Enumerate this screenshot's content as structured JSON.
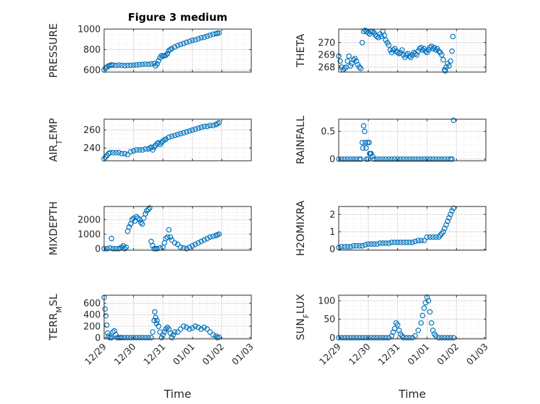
{
  "figure": {
    "title": "Figure 3 medium"
  },
  "chart_data": [
    {
      "type": "scatter",
      "title": "Figure 3 medium",
      "xlabel": "",
      "ylabel": "PRESSURE",
      "xlim": [
        0,
        5
      ],
      "ylim": [
        580,
        1000
      ],
      "yticks": [
        600,
        800,
        1000
      ],
      "ytick_labels": [
        "600",
        "800",
        "1000"
      ],
      "xtick_labels": [
        "12/29",
        "12/30",
        "12/31",
        "01/01",
        "01/02",
        "01/03"
      ],
      "grid": true,
      "x": [
        0.0,
        0.05,
        0.1,
        0.15,
        0.2,
        0.25,
        0.3,
        0.4,
        0.5,
        0.6,
        0.7,
        0.8,
        0.9,
        1.0,
        1.1,
        1.2,
        1.3,
        1.4,
        1.5,
        1.6,
        1.7,
        1.75,
        1.8,
        1.85,
        1.9,
        1.95,
        2.0,
        2.05,
        2.1,
        2.15,
        2.2,
        2.25,
        2.3,
        2.4,
        2.5,
        2.6,
        2.7,
        2.8,
        2.9,
        3.0,
        3.1,
        3.2,
        3.3,
        3.4,
        3.5,
        3.6,
        3.7,
        3.8,
        3.85,
        3.9
      ],
      "y": [
        600,
        620,
        630,
        640,
        645,
        650,
        648,
        645,
        648,
        646,
        642,
        645,
        646,
        648,
        650,
        652,
        655,
        657,
        655,
        660,
        665,
        640,
        660,
        690,
        720,
        740,
        735,
        740,
        745,
        760,
        790,
        800,
        810,
        825,
        840,
        850,
        860,
        870,
        880,
        890,
        895,
        905,
        915,
        920,
        930,
        940,
        950,
        955,
        960,
        962
      ]
    },
    {
      "type": "scatter",
      "title": "",
      "xlabel": "",
      "ylabel": "THETA",
      "xlim": [
        0,
        5
      ],
      "ylim": [
        267.6,
        271.1
      ],
      "yticks": [
        268,
        269,
        270
      ],
      "ytick_labels": [
        "268",
        "269",
        "270"
      ],
      "xtick_labels": [
        "12/29",
        "12/30",
        "12/31",
        "01/01",
        "01/02",
        "01/03"
      ],
      "grid": true,
      "x": [
        0.0,
        0.05,
        0.1,
        0.15,
        0.2,
        0.25,
        0.3,
        0.35,
        0.4,
        0.45,
        0.5,
        0.55,
        0.6,
        0.65,
        0.7,
        0.75,
        0.8,
        0.85,
        0.9,
        0.95,
        1.0,
        1.05,
        1.1,
        1.15,
        1.2,
        1.25,
        1.3,
        1.35,
        1.4,
        1.45,
        1.5,
        1.55,
        1.6,
        1.65,
        1.7,
        1.75,
        1.8,
        1.85,
        1.9,
        1.95,
        2.0,
        2.05,
        2.1,
        2.15,
        2.2,
        2.25,
        2.3,
        2.35,
        2.4,
        2.45,
        2.5,
        2.55,
        2.6,
        2.65,
        2.7,
        2.75,
        2.8,
        2.85,
        2.9,
        2.95,
        3.0,
        3.05,
        3.1,
        3.15,
        3.2,
        3.25,
        3.3,
        3.35,
        3.4,
        3.45,
        3.5,
        3.55,
        3.6,
        3.62,
        3.65,
        3.7,
        3.75,
        3.8,
        3.85,
        3.88
      ],
      "y": [
        268.9,
        268.5,
        268.0,
        267.8,
        267.9,
        268.0,
        268.5,
        268.9,
        268.1,
        268.3,
        268.6,
        268.7,
        268.5,
        268.2,
        268.0,
        267.9,
        270.0,
        270.9,
        271.0,
        270.9,
        270.8,
        270.7,
        270.9,
        270.9,
        270.8,
        270.6,
        270.5,
        270.4,
        270.7,
        270.5,
        270.9,
        270.6,
        270.2,
        270.0,
        269.8,
        269.4,
        269.2,
        269.4,
        269.5,
        269.3,
        269.2,
        269.1,
        269.2,
        269.4,
        269.0,
        268.8,
        269.0,
        269.1,
        268.9,
        268.8,
        269.0,
        269.2,
        269.1,
        269.0,
        269.3,
        269.5,
        269.6,
        269.4,
        269.5,
        269.3,
        269.2,
        269.4,
        269.6,
        269.7,
        269.5,
        269.6,
        269.4,
        269.5,
        269.3,
        269.2,
        269.0,
        268.6,
        267.8,
        267.7,
        268.0,
        268.3,
        268.1,
        268.5,
        269.3,
        270.5
      ]
    },
    {
      "type": "scatter",
      "title": "",
      "xlabel": "",
      "ylabel": "AIR_TEMP",
      "xlim": [
        0,
        5
      ],
      "ylim": [
        226,
        272
      ],
      "yticks": [
        240,
        260
      ],
      "ytick_labels": [
        "240",
        "260"
      ],
      "xtick_labels": [
        "12/29",
        "12/30",
        "12/31",
        "01/01",
        "01/02",
        "01/03"
      ],
      "grid": true,
      "x": [
        0.0,
        0.05,
        0.1,
        0.15,
        0.2,
        0.3,
        0.4,
        0.5,
        0.6,
        0.7,
        0.8,
        0.9,
        1.0,
        1.1,
        1.2,
        1.3,
        1.4,
        1.5,
        1.55,
        1.6,
        1.65,
        1.7,
        1.75,
        1.8,
        1.85,
        1.9,
        1.95,
        2.0,
        2.05,
        2.1,
        2.2,
        2.3,
        2.4,
        2.5,
        2.6,
        2.7,
        2.8,
        2.9,
        3.0,
        3.1,
        3.2,
        3.3,
        3.4,
        3.5,
        3.6,
        3.7,
        3.8,
        3.85,
        3.9
      ],
      "y": [
        228,
        230,
        232,
        234,
        235,
        235,
        235,
        235,
        234,
        234,
        233,
        236,
        237,
        238,
        238,
        238,
        239,
        239,
        240,
        241,
        238,
        241,
        243,
        245,
        246,
        244,
        246,
        248,
        249,
        250,
        252,
        253,
        254,
        255,
        256,
        257,
        258,
        259,
        260,
        261,
        262,
        263,
        264,
        264,
        265,
        265,
        266,
        267,
        268
      ]
    },
    {
      "type": "scatter",
      "title": "",
      "xlabel": "",
      "ylabel": "RAINFALL",
      "xlim": [
        0,
        5
      ],
      "ylim": [
        -0.03,
        0.72
      ],
      "yticks": [
        0,
        0.5
      ],
      "ytick_labels": [
        "0",
        "0.5"
      ],
      "xtick_labels": [
        "12/29",
        "12/30",
        "12/31",
        "01/01",
        "01/02",
        "01/03"
      ],
      "grid": true,
      "x": [
        0.0,
        0.1,
        0.2,
        0.3,
        0.4,
        0.5,
        0.6,
        0.7,
        0.75,
        0.8,
        0.82,
        0.85,
        0.88,
        0.9,
        0.93,
        0.95,
        0.98,
        1.0,
        1.03,
        1.05,
        1.08,
        1.1,
        1.15,
        1.2,
        1.3,
        1.4,
        1.5,
        1.6,
        1.7,
        1.8,
        1.9,
        2.0,
        2.1,
        2.2,
        2.3,
        2.4,
        2.5,
        2.6,
        2.7,
        2.8,
        2.9,
        3.0,
        3.1,
        3.2,
        3.3,
        3.4,
        3.5,
        3.6,
        3.7,
        3.8,
        3.85,
        3.9
      ],
      "y": [
        0,
        0,
        0,
        0,
        0,
        0,
        0,
        0,
        0,
        0.3,
        0.2,
        0.6,
        0.5,
        0.3,
        0.2,
        0,
        0.3,
        0,
        0.3,
        0.1,
        0.1,
        0.1,
        0.05,
        0,
        0,
        0,
        0,
        0,
        0,
        0,
        0,
        0,
        0,
        0,
        0,
        0,
        0,
        0,
        0,
        0,
        0,
        0,
        0,
        0,
        0,
        0,
        0,
        0,
        0,
        0,
        0,
        0.7
      ]
    },
    {
      "type": "scatter",
      "title": "",
      "xlabel": "",
      "ylabel": "MIXDEPTH",
      "xlim": [
        0,
        5
      ],
      "ylim": [
        -100,
        2900
      ],
      "yticks": [
        0,
        1000,
        2000
      ],
      "ytick_labels": [
        "0",
        "1000",
        "2000"
      ],
      "xtick_labels": [
        "12/29",
        "12/30",
        "12/31",
        "01/01",
        "01/02",
        "01/03"
      ],
      "grid": true,
      "x": [
        0.0,
        0.1,
        0.2,
        0.25,
        0.3,
        0.4,
        0.5,
        0.55,
        0.6,
        0.65,
        0.7,
        0.75,
        0.8,
        0.85,
        0.9,
        0.95,
        1.0,
        1.05,
        1.1,
        1.15,
        1.2,
        1.25,
        1.3,
        1.35,
        1.4,
        1.45,
        1.5,
        1.55,
        1.6,
        1.65,
        1.7,
        1.75,
        1.8,
        1.9,
        2.0,
        2.05,
        2.1,
        2.15,
        2.2,
        2.25,
        2.3,
        2.4,
        2.5,
        2.6,
        2.7,
        2.8,
        2.9,
        3.0,
        3.1,
        3.2,
        3.3,
        3.4,
        3.5,
        3.6,
        3.7,
        3.8,
        3.85,
        3.9
      ],
      "y": [
        0,
        0,
        50,
        700,
        0,
        0,
        0,
        50,
        100,
        200,
        0,
        100,
        1200,
        1500,
        1700,
        2000,
        2100,
        1900,
        2200,
        2100,
        2000,
        1800,
        1700,
        2100,
        2400,
        2600,
        2700,
        2800,
        500,
        200,
        0,
        0,
        0,
        50,
        100,
        400,
        700,
        800,
        1300,
        800,
        600,
        400,
        300,
        100,
        50,
        0,
        100,
        200,
        300,
        400,
        500,
        600,
        700,
        800,
        850,
        900,
        950,
        1000
      ]
    },
    {
      "type": "scatter",
      "title": "",
      "xlabel": "",
      "ylabel": "H2OMIXRA",
      "xlim": [
        0,
        5
      ],
      "ylim": [
        -0.05,
        2.45
      ],
      "yticks": [
        0,
        1,
        2
      ],
      "ytick_labels": [
        "0",
        "1",
        "2"
      ],
      "xtick_labels": [
        "12/29",
        "12/30",
        "12/31",
        "01/01",
        "01/02",
        "01/03"
      ],
      "grid": true,
      "x": [
        0.0,
        0.1,
        0.2,
        0.3,
        0.4,
        0.5,
        0.6,
        0.7,
        0.8,
        0.9,
        1.0,
        1.1,
        1.2,
        1.3,
        1.4,
        1.5,
        1.6,
        1.7,
        1.8,
        1.9,
        2.0,
        2.1,
        2.2,
        2.3,
        2.4,
        2.5,
        2.6,
        2.7,
        2.8,
        2.9,
        3.0,
        3.1,
        3.2,
        3.3,
        3.4,
        3.45,
        3.5,
        3.55,
        3.6,
        3.65,
        3.7,
        3.75,
        3.8,
        3.85,
        3.9
      ],
      "y": [
        0.1,
        0.15,
        0.15,
        0.15,
        0.15,
        0.2,
        0.2,
        0.2,
        0.2,
        0.25,
        0.3,
        0.3,
        0.3,
        0.3,
        0.35,
        0.35,
        0.35,
        0.35,
        0.4,
        0.4,
        0.4,
        0.4,
        0.4,
        0.4,
        0.4,
        0.4,
        0.45,
        0.5,
        0.5,
        0.5,
        0.7,
        0.7,
        0.7,
        0.7,
        0.7,
        0.8,
        0.9,
        1.0,
        1.2,
        1.4,
        1.6,
        1.8,
        2.0,
        2.2,
        2.35
      ]
    },
    {
      "type": "scatter",
      "title": "",
      "xlabel": "Time",
      "ylabel": "TERR_MSL",
      "xlim": [
        0,
        5
      ],
      "ylim": [
        -20,
        740
      ],
      "yticks": [
        0,
        200,
        400,
        600
      ],
      "ytick_labels": [
        "0",
        "200",
        "400",
        "600"
      ],
      "xtick_labels": [
        "12/29",
        "12/30",
        "12/31",
        "01/01",
        "01/02",
        "01/03"
      ],
      "grid": true,
      "x": [
        0.0,
        0.03,
        0.06,
        0.09,
        0.12,
        0.15,
        0.2,
        0.25,
        0.3,
        0.35,
        0.4,
        0.45,
        0.5,
        0.55,
        0.6,
        0.7,
        0.8,
        0.9,
        1.0,
        1.1,
        1.2,
        1.3,
        1.4,
        1.5,
        1.6,
        1.65,
        1.7,
        1.72,
        1.75,
        1.78,
        1.8,
        1.85,
        1.9,
        1.95,
        2.0,
        2.05,
        2.1,
        2.15,
        2.2,
        2.25,
        2.3,
        2.35,
        2.4,
        2.5,
        2.6,
        2.7,
        2.8,
        2.9,
        3.0,
        3.1,
        3.2,
        3.3,
        3.4,
        3.5,
        3.6,
        3.7,
        3.8,
        3.85,
        3.9
      ],
      "y": [
        700,
        500,
        380,
        220,
        80,
        30,
        0,
        0,
        100,
        120,
        50,
        0,
        0,
        0,
        0,
        0,
        0,
        0,
        0,
        0,
        0,
        0,
        0,
        0,
        0,
        100,
        300,
        450,
        350,
        250,
        300,
        200,
        100,
        0,
        50,
        100,
        150,
        180,
        150,
        80,
        0,
        50,
        100,
        100,
        150,
        200,
        180,
        150,
        170,
        200,
        180,
        150,
        180,
        150,
        100,
        50,
        30,
        0,
        10
      ]
    },
    {
      "type": "scatter",
      "title": "",
      "xlabel": "Time",
      "ylabel": "SUN_FLUX",
      "xlim": [
        0,
        5
      ],
      "ylim": [
        -3,
        115
      ],
      "yticks": [
        0,
        50,
        100
      ],
      "ytick_labels": [
        "0",
        "50",
        "100"
      ],
      "xtick_labels": [
        "12/29",
        "12/30",
        "12/31",
        "01/01",
        "01/02",
        "01/03"
      ],
      "grid": true,
      "x": [
        0.0,
        0.1,
        0.2,
        0.3,
        0.4,
        0.5,
        0.6,
        0.7,
        0.8,
        0.9,
        1.0,
        1.1,
        1.2,
        1.3,
        1.4,
        1.5,
        1.6,
        1.7,
        1.8,
        1.85,
        1.9,
        1.95,
        2.0,
        2.05,
        2.1,
        2.15,
        2.2,
        2.3,
        2.4,
        2.5,
        2.6,
        2.7,
        2.8,
        2.85,
        2.9,
        2.95,
        3.0,
        3.05,
        3.1,
        3.15,
        3.2,
        3.25,
        3.3,
        3.4,
        3.5,
        3.6,
        3.7,
        3.8,
        3.9
      ],
      "y": [
        0,
        0,
        0,
        0,
        0,
        0,
        0,
        0,
        0,
        0,
        0,
        0,
        0,
        0,
        0,
        0,
        0,
        0,
        5,
        15,
        25,
        40,
        35,
        20,
        10,
        5,
        0,
        0,
        0,
        0,
        5,
        20,
        40,
        60,
        80,
        95,
        110,
        100,
        70,
        40,
        20,
        10,
        5,
        0,
        0,
        0,
        0,
        0,
        0
      ]
    }
  ]
}
